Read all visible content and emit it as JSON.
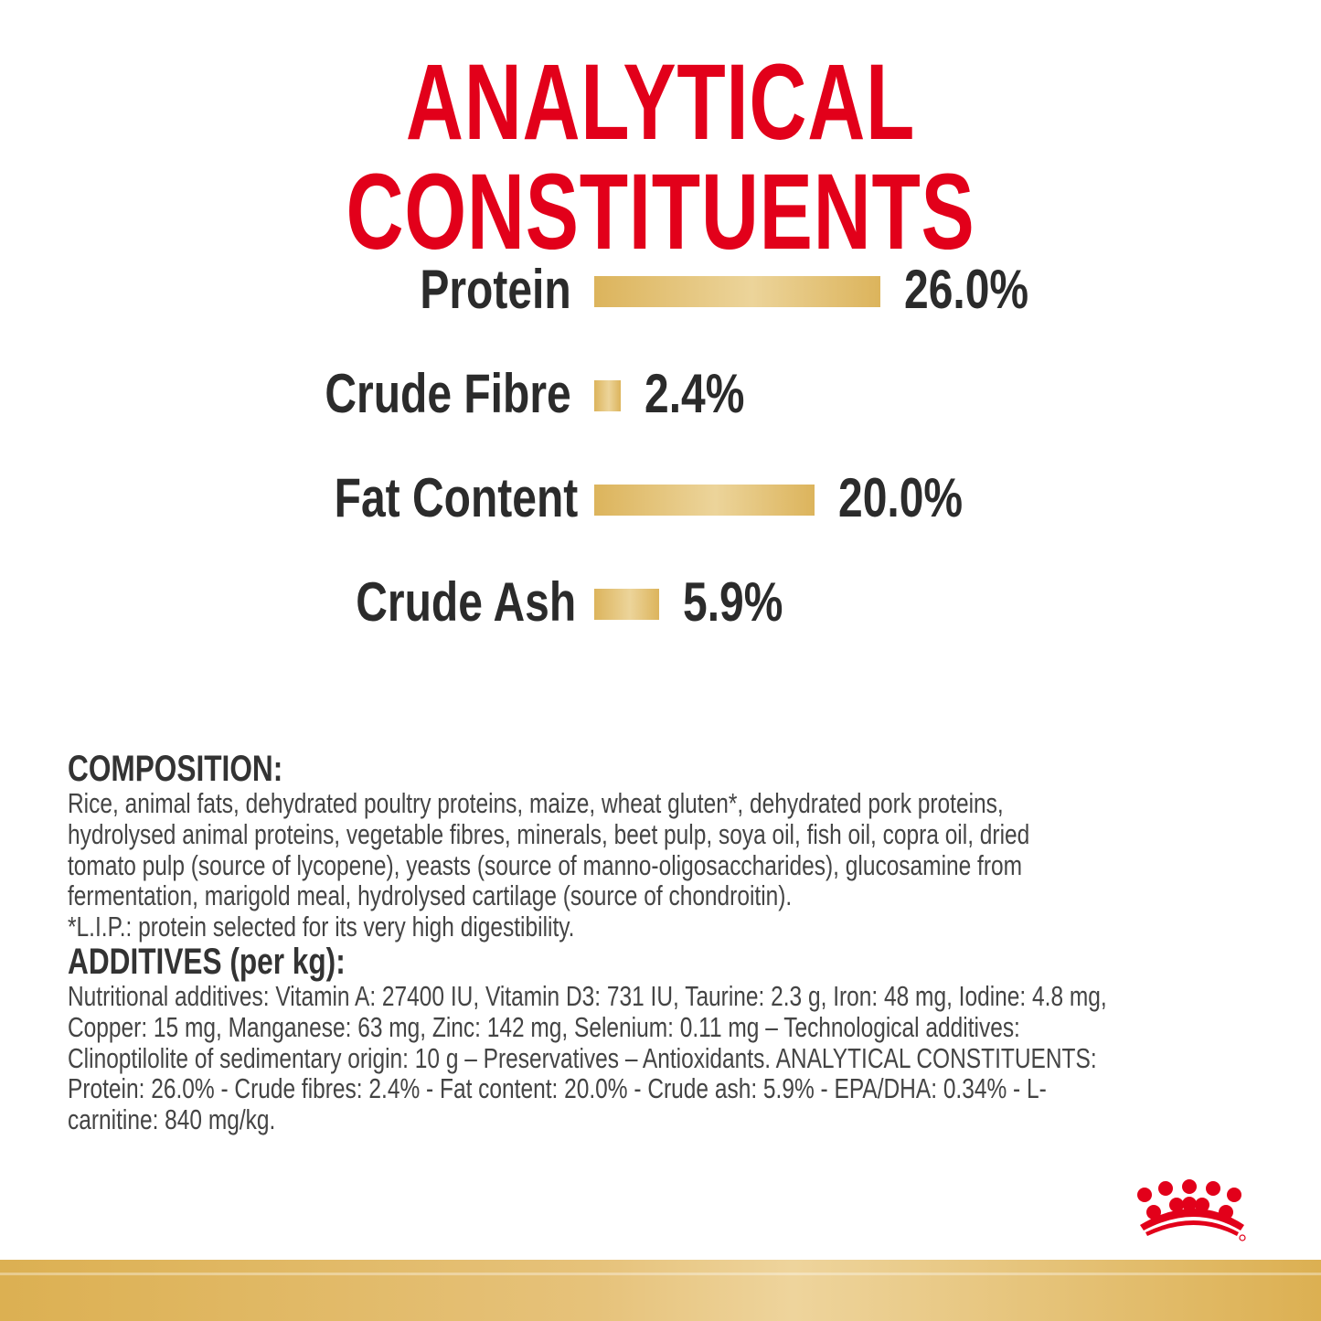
{
  "title": "ANALYTICAL CONSTITUENTS",
  "chart_data": {
    "type": "bar",
    "orientation": "horizontal",
    "categories": [
      "Protein",
      "Crude Fibre",
      "Fat Content",
      "Crude Ash"
    ],
    "values": [
      26.0,
      2.4,
      20.0,
      5.9
    ],
    "value_labels": [
      "26.0%",
      "2.4%",
      "20.0%",
      "5.9%"
    ],
    "unit": "%",
    "bar_color": "#dcb45c",
    "grid": false
  },
  "composition": {
    "heading": "COMPOSITION:",
    "lines": [
      "Rice, animal fats, dehydrated poultry proteins, maize, wheat gluten*, dehydrated pork proteins,",
      "hydrolysed animal proteins, vegetable fibres, minerals, beet pulp, soya oil, fish oil, copra oil, dried",
      "tomato pulp (source of lycopene), yeasts (source of manno-oligosaccharides), glucosamine from",
      "fermentation, marigold meal, hydrolysed cartilage (source of chondroitin).",
      "*L.I.P.: protein selected for its very high digestibility."
    ]
  },
  "additives": {
    "heading": "ADDITIVES (per kg):",
    "lines": [
      "Nutritional additives: Vitamin A: 27400 IU, Vitamin D3: 731 IU, Taurine: 2.3 g, Iron: 48 mg, Iodine: 4.8 mg,",
      "Copper: 15 mg, Manganese: 63 mg, Zinc: 142 mg, Selenium: 0.11 mg – Technological additives:",
      "Clinoptilolite of sedimentary origin: 10 g – Preservatives – Antioxidants. ANALYTICAL CONSTITUENTS:",
      "Protein: 26.0% - Crude fibres:  2.4% - Fat content: 20.0% - Crude ash: 5.9% - EPA/DHA: 0.34% - L-",
      "carnitine: 840 mg/kg."
    ]
  },
  "colors": {
    "title": "#e2001a",
    "logo": "#e2001a",
    "gold": "#dcb052"
  },
  "logo": {
    "icon": "crown-icon"
  }
}
